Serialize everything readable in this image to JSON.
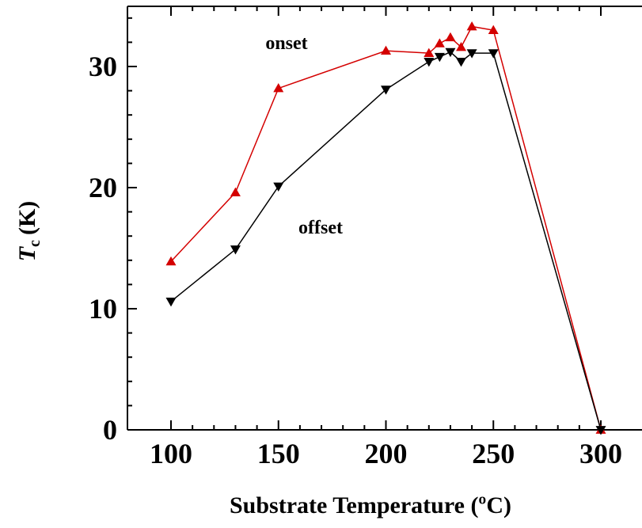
{
  "chart_data": {
    "type": "line",
    "xlabel": "Substrate Temperature (ºC)",
    "ylabel_main": "T",
    "ylabel_sub": "c",
    "ylabel_unit": "(K)",
    "xlim": [
      80,
      310
    ],
    "ylim": [
      0,
      35
    ],
    "x_ticks": [
      100,
      150,
      200,
      250,
      300
    ],
    "y_ticks": [
      0,
      10,
      20,
      30
    ],
    "grid": false,
    "series": [
      {
        "name": "onset",
        "color": "#d40000",
        "marker": "triangle-up",
        "points": [
          [
            100,
            13.9
          ],
          [
            130,
            19.6
          ],
          [
            150,
            28.2
          ],
          [
            200,
            31.3
          ],
          [
            220,
            31.1
          ],
          [
            225,
            31.9
          ],
          [
            230,
            32.4
          ],
          [
            235,
            31.6
          ],
          [
            240,
            33.3
          ],
          [
            250,
            33.0
          ],
          [
            300,
            0
          ]
        ]
      },
      {
        "name": "offset",
        "color": "#000000",
        "marker": "triangle-down",
        "points": [
          [
            100,
            10.6
          ],
          [
            130,
            14.9
          ],
          [
            150,
            20.1
          ],
          [
            200,
            28.1
          ],
          [
            220,
            30.4
          ],
          [
            225,
            30.8
          ],
          [
            230,
            31.2
          ],
          [
            235,
            30.4
          ],
          [
            240,
            31.1
          ],
          [
            250,
            31.1
          ],
          [
            300,
            0
          ]
        ]
      }
    ]
  }
}
